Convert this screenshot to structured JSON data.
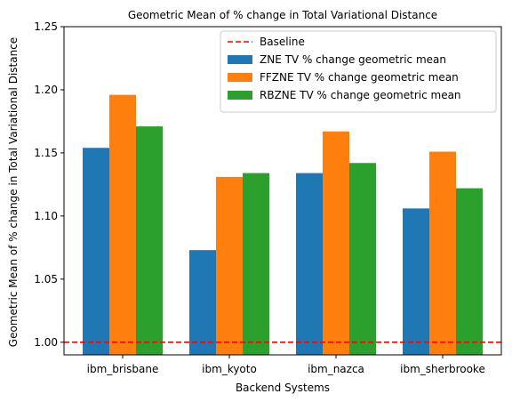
{
  "chart_data": {
    "type": "bar",
    "title": "Geometric Mean of % change in Total Variational Distance",
    "xlabel": "Backend Systems",
    "ylabel": "Geometric Mean of % change in Total Variational Distance",
    "categories": [
      "ibm_brisbane",
      "ibm_kyoto",
      "ibm_nazca",
      "ibm_sherbrooke"
    ],
    "series": [
      {
        "name": "ZNE TV % change geometric mean",
        "color": "#1f77b4",
        "values": [
          1.154,
          1.073,
          1.134,
          1.106
        ]
      },
      {
        "name": "FFZNE TV % change geometric mean",
        "color": "#ff7f0e",
        "values": [
          1.196,
          1.131,
          1.167,
          1.151
        ]
      },
      {
        "name": "RBZNE TV % change geometric mean",
        "color": "#2ca02c",
        "values": [
          1.171,
          1.134,
          1.142,
          1.122
        ]
      }
    ],
    "baseline": {
      "name": "Baseline",
      "value": 1.0,
      "color": "#ff0000",
      "style": "dashed"
    },
    "ylim": [
      0.99,
      1.25
    ],
    "yticks": [
      "1.00",
      "1.05",
      "1.10",
      "1.15",
      "1.20",
      "1.25"
    ],
    "grid": false,
    "legend_position": "top-right"
  }
}
